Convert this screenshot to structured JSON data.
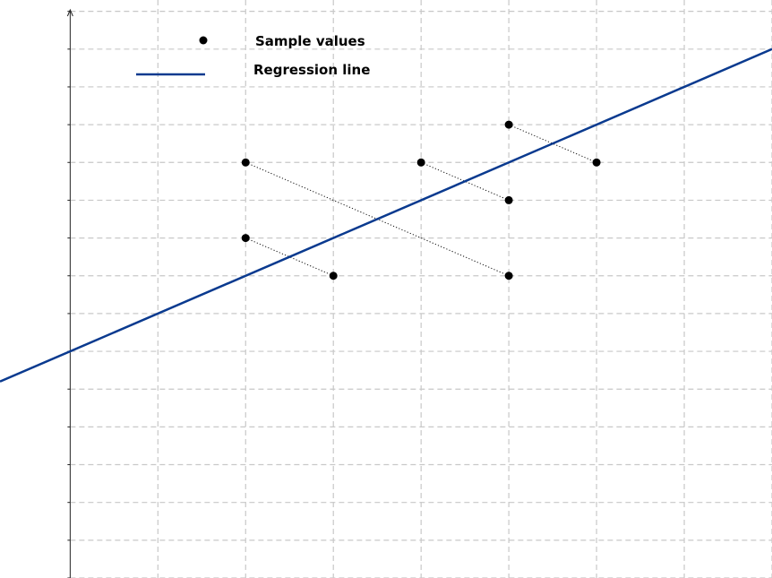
{
  "chart_data": {
    "type": "scatter",
    "title": "",
    "xlabel": "",
    "ylabel": "",
    "grid": true,
    "legend_position": "top-left",
    "xlim": [
      -0.8,
      8.0
    ],
    "ylim": [
      -3.0,
      12.3
    ],
    "points": [
      {
        "x": 2,
        "y": 8
      },
      {
        "x": 2,
        "y": 6
      },
      {
        "x": 3,
        "y": 5
      },
      {
        "x": 4,
        "y": 8
      },
      {
        "x": 5,
        "y": 9
      },
      {
        "x": 5,
        "y": 7
      },
      {
        "x": 5,
        "y": 5
      },
      {
        "x": 6,
        "y": 8
      }
    ],
    "regression": {
      "intercept": 3,
      "slope": 1
    },
    "series": [
      {
        "name": "Sample values",
        "kind": "points"
      },
      {
        "name": "Regression line",
        "kind": "line"
      }
    ],
    "colors": {
      "points": "#000000",
      "line": "#0a3a8f"
    }
  }
}
